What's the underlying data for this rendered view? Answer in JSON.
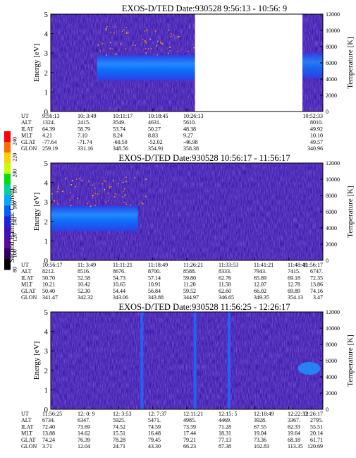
{
  "colorbar": {
    "label": "Second Harmonic Current",
    "ticks": [
      "240",
      "220",
      "200",
      "180",
      "160",
      "140",
      "120",
      "100",
      "80"
    ],
    "colors": [
      "#ff0000",
      "#ff6a00",
      "#ffd000",
      "#c8ff00",
      "#00e000",
      "#00d2a0",
      "#00a8ff",
      "#0060ff",
      "#2020e0",
      "#4010c0",
      "#5a0aa0",
      "#300060",
      "#000000"
    ]
  },
  "chart_data": [
    {
      "type": "heatmap",
      "title": "EXOS-D/TED   Date:930528  9:56:13 - 10:56: 9",
      "ylabel": "Energy [eV]",
      "y2label": "Temperature [K]",
      "ylim": [
        0,
        5
      ],
      "y2lim": [
        0,
        12000
      ],
      "yticks": [
        "0",
        "1",
        "2",
        "3",
        "4",
        "5"
      ],
      "y2ticks": [
        "0",
        "2000",
        "4000",
        "6000",
        "8000",
        "10000",
        "12000"
      ],
      "x_ticks": [
        "9:56:13",
        "10: 3:49",
        "10:11:17",
        "10:18:45",
        "10:26:13",
        "",
        "",
        "",
        "10:52:33"
      ],
      "gap": {
        "from_fraction": 0.53,
        "to_fraction": 0.925
      },
      "band": {
        "energy_low": 1.6,
        "energy_high": 2.9,
        "from_fraction": 0.17,
        "to_fraction": 0.53
      },
      "ephemeris": [
        {
          "name": "UT",
          "values": [
            "9:56:13",
            "10: 3:49",
            "10:11:17",
            "10:18:45",
            "10:26:13",
            "",
            "",
            "",
            "10:52:33"
          ]
        },
        {
          "name": "ALT",
          "values": [
            "1324.",
            "2415.",
            "3549.",
            "4631.",
            "5610.",
            "",
            "",
            "",
            "8010."
          ]
        },
        {
          "name": "ILAT",
          "values": [
            "64.39",
            "58.79",
            "53.74",
            "50.27",
            "48.38",
            "",
            "",
            "",
            "49.92"
          ]
        },
        {
          "name": "MLT",
          "values": [
            "4.21",
            "7.10",
            "8.24",
            "8.83",
            "9.27",
            "",
            "",
            "",
            "10.10"
          ]
        },
        {
          "name": "GLAT",
          "values": [
            "-77.64",
            "-71.74",
            "-60.50",
            "-52.02",
            "-46.98",
            "",
            "",
            "",
            "49.57"
          ]
        },
        {
          "name": "GLON",
          "values": [
            "259.19",
            "331.16",
            "348.56",
            "354.91",
            "358.38",
            "",
            "",
            "",
            "340.96"
          ]
        }
      ]
    },
    {
      "type": "heatmap",
      "title": "EXOS-D/TED   Date:930528  10:56:17 - 11:56:17",
      "ylabel": "Energy [eV]",
      "y2label": "Temperature [K]",
      "ylim": [
        0,
        5
      ],
      "y2lim": [
        0,
        12000
      ],
      "yticks": [
        "0",
        "1",
        "2",
        "3",
        "4",
        "5"
      ],
      "y2ticks": [
        "0",
        "2000",
        "4000",
        "6000",
        "8000",
        "10000",
        "12000"
      ],
      "x_ticks": [
        "10:56:17",
        "11: 3:49",
        "11:11:21",
        "11:18:49",
        "11:26:21",
        "11:33:53",
        "11:41:21",
        "11:48:49",
        "11:56:17"
      ],
      "band": {
        "energy_low": 1.5,
        "energy_high": 2.8,
        "from_fraction": 0.0,
        "to_fraction": 0.32
      },
      "ephemeris": [
        {
          "name": "UT",
          "values": [
            "10:56:17",
            "11: 3:49",
            "11:11:21",
            "11:18:49",
            "11:26:21",
            "11:33:53",
            "11:41:21",
            "11:48:49",
            "11:56:17"
          ]
        },
        {
          "name": "ALT",
          "values": [
            "8212.",
            "8516.",
            "8676.",
            "8700.",
            "8588.",
            "8333.",
            "7943.",
            "7415.",
            "6747."
          ]
        },
        {
          "name": "ILAT",
          "values": [
            "50.70",
            "52.58",
            "54.73",
            "57.14",
            "59.80",
            "62.76",
            "65.89",
            "69.18",
            "72.35"
          ]
        },
        {
          "name": "MLT",
          "values": [
            "10.21",
            "10.42",
            "10.65",
            "10.91",
            "11.20",
            "11.58",
            "12.07",
            "12.78",
            "13.86"
          ]
        },
        {
          "name": "GLAT",
          "values": [
            "50.40",
            "52.30",
            "54.44",
            "56.84",
            "59.52",
            "62.60",
            "66.02",
            "69.89",
            "74.16"
          ]
        },
        {
          "name": "GLON",
          "values": [
            "341.47",
            "342.32",
            "343.06",
            "343.88",
            "344.97",
            "346.65",
            "349.35",
            "354.13",
            "3.47"
          ]
        }
      ]
    },
    {
      "type": "heatmap",
      "title": "EXOS-D/TED   Date:930528  11:56:25 - 12:26:17",
      "ylabel": "Energy [eV]",
      "y2label": "Temperature [K]",
      "ylim": [
        0,
        5
      ],
      "y2lim": [
        0,
        12000
      ],
      "yticks": [
        "0",
        "1",
        "2",
        "3",
        "4",
        "5"
      ],
      "y2ticks": [
        "0",
        "2000",
        "4000",
        "6000",
        "8000",
        "10000",
        "12000"
      ],
      "x_ticks": [
        "11:56:25",
        "12: 0: 9",
        "12: 3:53",
        "12: 7:37",
        "12:11:21",
        "12:15: 5",
        "12:18:49",
        "12:22:33",
        "12:26:17"
      ],
      "spikes_fraction": [
        0.335,
        0.53,
        0.655
      ],
      "ephemeris": [
        {
          "name": "UT",
          "values": [
            "11:56:25",
            "12: 0: 9",
            "12: 3:53",
            "12: 7:37",
            "12:11:21",
            "12:15: 5",
            "12:18:49",
            "12:22:33",
            "12:26:17"
          ]
        },
        {
          "name": "ALT",
          "values": [
            "6734.",
            "6347.",
            "5925.",
            "5471.",
            "4985.",
            "4469.",
            "3928.",
            "3367.",
            "2795."
          ]
        },
        {
          "name": "ILAT",
          "values": [
            "72.40",
            "73.69",
            "74.52",
            "74.59",
            "73.59",
            "71.28",
            "67.55",
            "62.33",
            "55.51"
          ]
        },
        {
          "name": "MLT",
          "values": [
            "13.88",
            "14.62",
            "15.51",
            "16.48",
            "17.44",
            "18.31",
            "19.04",
            "19.64",
            "20.14"
          ]
        },
        {
          "name": "GLAT",
          "values": [
            "74.24",
            "76.39",
            "78.28",
            "79.45",
            "79.21",
            "77.13",
            "73.36",
            "68.18",
            "61.71"
          ]
        },
        {
          "name": "GLON",
          "values": [
            "3.71",
            "12.04",
            "24.71",
            "43.30",
            "66.23",
            "87.38",
            "102.83",
            "113.35",
            "120.69"
          ]
        }
      ]
    }
  ]
}
